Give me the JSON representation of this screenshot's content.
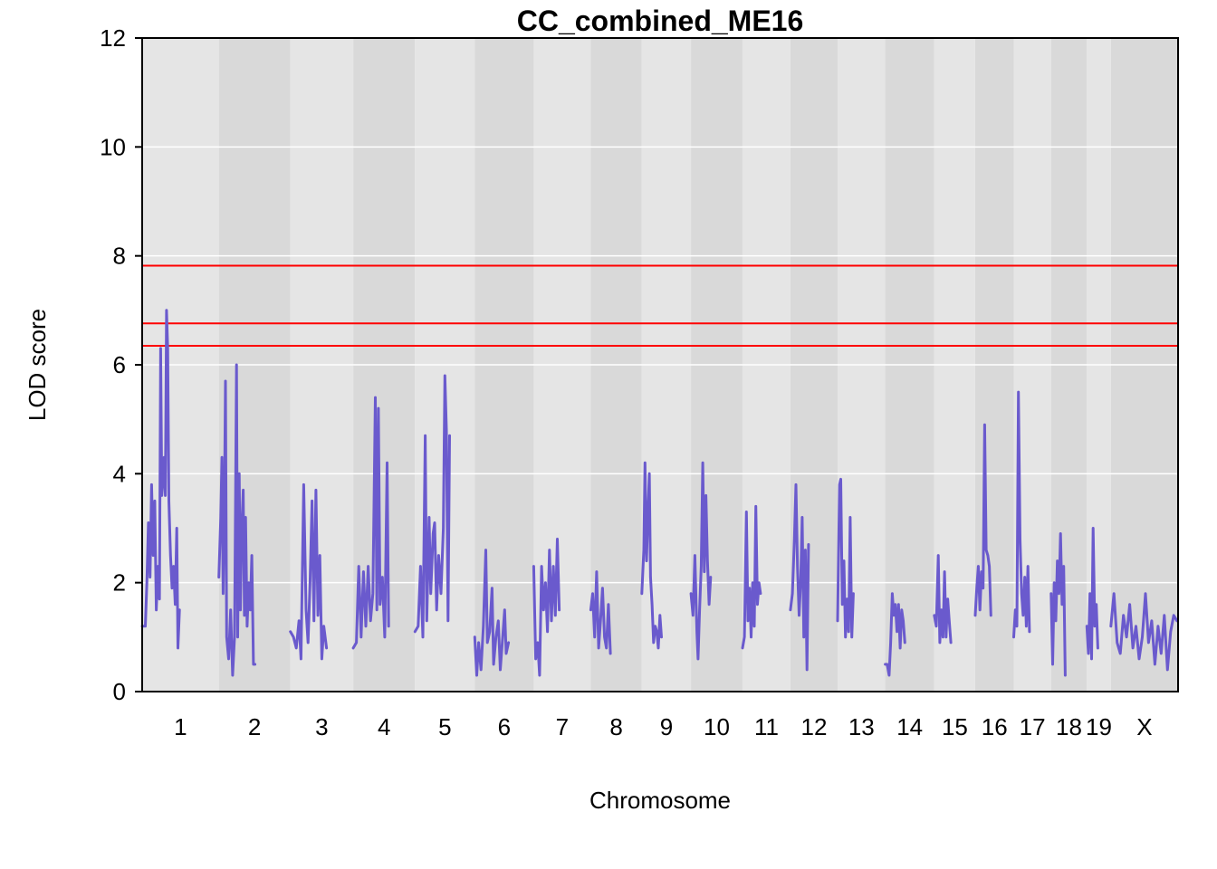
{
  "chart_data": {
    "type": "line",
    "title": "CC_combined_ME16",
    "xlabel": "Chromosome",
    "ylabel": "LOD score",
    "ylim": [
      0,
      12
    ],
    "yticks": [
      0,
      2,
      4,
      6,
      8,
      10,
      12
    ],
    "grid": true,
    "thresholds": [
      7.82,
      6.76,
      6.35
    ],
    "colors": {
      "line": "#6A5ACD",
      "threshold": "#FF0000",
      "band_light": "#E5E5E5",
      "band_dark": "#D9D9D9",
      "gridline": "#FFFFFF"
    },
    "chromosomes": [
      {
        "name": "1",
        "length": 195
      },
      {
        "name": "2",
        "length": 182
      },
      {
        "name": "3",
        "length": 160
      },
      {
        "name": "4",
        "length": 157
      },
      {
        "name": "5",
        "length": 152
      },
      {
        "name": "6",
        "length": 150
      },
      {
        "name": "7",
        "length": 145
      },
      {
        "name": "8",
        "length": 130
      },
      {
        "name": "9",
        "length": 125
      },
      {
        "name": "10",
        "length": 131
      },
      {
        "name": "11",
        "length": 122
      },
      {
        "name": "12",
        "length": 120
      },
      {
        "name": "13",
        "length": 121
      },
      {
        "name": "14",
        "length": 125
      },
      {
        "name": "15",
        "length": 104
      },
      {
        "name": "16",
        "length": 98
      },
      {
        "name": "17",
        "length": 95
      },
      {
        "name": "18",
        "length": 91
      },
      {
        "name": "19",
        "length": 61
      },
      {
        "name": "X",
        "length": 171
      }
    ],
    "series": [
      {
        "chr": "1",
        "points": [
          [
            0,
            1.2
          ],
          [
            8,
            1.2
          ],
          [
            12,
            2.0
          ],
          [
            16,
            3.1
          ],
          [
            20,
            2.1
          ],
          [
            24,
            3.8
          ],
          [
            28,
            2.5
          ],
          [
            32,
            3.5
          ],
          [
            36,
            1.5
          ],
          [
            40,
            2.3
          ],
          [
            44,
            1.7
          ],
          [
            47,
            6.3
          ],
          [
            50,
            3.6
          ],
          [
            53,
            3.9
          ],
          [
            56,
            4.3
          ],
          [
            59,
            3.6
          ],
          [
            62,
            7.0
          ],
          [
            65,
            6.3
          ],
          [
            68,
            3.5
          ],
          [
            72,
            2.5
          ],
          [
            76,
            1.9
          ],
          [
            80,
            2.3
          ],
          [
            84,
            1.6
          ],
          [
            88,
            3.0
          ],
          [
            91,
            0.8
          ],
          [
            95,
            1.5
          ]
        ]
      },
      {
        "chr": "2",
        "points": [
          [
            0,
            2.1
          ],
          [
            5,
            3.2
          ],
          [
            8,
            4.3
          ],
          [
            11,
            1.8
          ],
          [
            14,
            3.2
          ],
          [
            17,
            5.7
          ],
          [
            20,
            1.0
          ],
          [
            25,
            0.6
          ],
          [
            30,
            1.5
          ],
          [
            35,
            0.3
          ],
          [
            40,
            1.0
          ],
          [
            45,
            6.0
          ],
          [
            48,
            1.0
          ],
          [
            52,
            4.0
          ],
          [
            55,
            1.5
          ],
          [
            58,
            2.9
          ],
          [
            62,
            3.7
          ],
          [
            65,
            1.4
          ],
          [
            68,
            3.2
          ],
          [
            72,
            1.2
          ],
          [
            76,
            2.0
          ],
          [
            80,
            1.5
          ],
          [
            84,
            2.5
          ],
          [
            88,
            0.5
          ],
          [
            92,
            0.5
          ]
        ]
      },
      {
        "chr": "3",
        "points": [
          [
            0,
            1.1
          ],
          [
            8,
            1.0
          ],
          [
            15,
            0.8
          ],
          [
            22,
            1.3
          ],
          [
            27,
            0.6
          ],
          [
            34,
            3.8
          ],
          [
            40,
            1.5
          ],
          [
            45,
            0.9
          ],
          [
            50,
            2.0
          ],
          [
            55,
            3.5
          ],
          [
            60,
            1.3
          ],
          [
            65,
            3.7
          ],
          [
            70,
            1.4
          ],
          [
            75,
            2.5
          ],
          [
            80,
            0.6
          ],
          [
            85,
            1.2
          ],
          [
            92,
            0.8
          ]
        ]
      },
      {
        "chr": "4",
        "points": [
          [
            0,
            0.8
          ],
          [
            8,
            0.9
          ],
          [
            14,
            2.3
          ],
          [
            20,
            1.0
          ],
          [
            26,
            2.2
          ],
          [
            32,
            1.2
          ],
          [
            38,
            2.3
          ],
          [
            44,
            1.3
          ],
          [
            50,
            1.8
          ],
          [
            56,
            5.4
          ],
          [
            60,
            1.5
          ],
          [
            64,
            5.2
          ],
          [
            68,
            1.6
          ],
          [
            74,
            2.1
          ],
          [
            80,
            1.0
          ],
          [
            86,
            4.2
          ],
          [
            90,
            1.2
          ]
        ]
      },
      {
        "chr": "5",
        "points": [
          [
            0,
            1.1
          ],
          [
            8,
            1.2
          ],
          [
            14,
            2.3
          ],
          [
            20,
            1.0
          ],
          [
            26,
            4.7
          ],
          [
            30,
            1.3
          ],
          [
            36,
            3.2
          ],
          [
            40,
            1.8
          ],
          [
            46,
            2.9
          ],
          [
            50,
            3.1
          ],
          [
            55,
            1.5
          ],
          [
            60,
            2.5
          ],
          [
            66,
            1.8
          ],
          [
            72,
            3.0
          ],
          [
            76,
            5.8
          ],
          [
            80,
            4.8
          ],
          [
            84,
            1.3
          ],
          [
            88,
            4.7
          ]
        ]
      },
      {
        "chr": "6",
        "points": [
          [
            0,
            1.0
          ],
          [
            5,
            0.3
          ],
          [
            10,
            0.9
          ],
          [
            16,
            0.4
          ],
          [
            22,
            1.2
          ],
          [
            28,
            2.6
          ],
          [
            32,
            0.9
          ],
          [
            38,
            1.1
          ],
          [
            44,
            1.9
          ],
          [
            48,
            0.5
          ],
          [
            54,
            1.0
          ],
          [
            60,
            1.3
          ],
          [
            65,
            0.4
          ],
          [
            70,
            0.9
          ],
          [
            76,
            1.5
          ],
          [
            80,
            0.7
          ],
          [
            86,
            0.9
          ]
        ]
      },
      {
        "chr": "7",
        "points": [
          [
            0,
            2.3
          ],
          [
            5,
            0.6
          ],
          [
            10,
            0.9
          ],
          [
            15,
            0.3
          ],
          [
            20,
            2.3
          ],
          [
            25,
            1.5
          ],
          [
            30,
            2.0
          ],
          [
            35,
            1.1
          ],
          [
            40,
            2.6
          ],
          [
            45,
            1.3
          ],
          [
            50,
            2.3
          ],
          [
            55,
            1.4
          ],
          [
            60,
            2.8
          ],
          [
            65,
            1.5
          ]
        ]
      },
      {
        "chr": "8",
        "points": [
          [
            0,
            1.5
          ],
          [
            5,
            1.8
          ],
          [
            10,
            1.0
          ],
          [
            15,
            2.2
          ],
          [
            20,
            0.8
          ],
          [
            25,
            1.3
          ],
          [
            30,
            1.9
          ],
          [
            35,
            1.0
          ],
          [
            40,
            0.8
          ],
          [
            45,
            1.6
          ],
          [
            50,
            0.7
          ]
        ]
      },
      {
        "chr": "9",
        "points": [
          [
            0,
            1.8
          ],
          [
            5,
            2.6
          ],
          [
            8,
            4.2
          ],
          [
            12,
            2.4
          ],
          [
            16,
            3.4
          ],
          [
            19,
            4.0
          ],
          [
            22,
            2.1
          ],
          [
            26,
            1.6
          ],
          [
            30,
            0.9
          ],
          [
            34,
            1.2
          ],
          [
            38,
            1.1
          ],
          [
            42,
            0.8
          ],
          [
            46,
            1.4
          ],
          [
            50,
            1.0
          ]
        ]
      },
      {
        "chr": "10",
        "points": [
          [
            0,
            1.8
          ],
          [
            5,
            1.4
          ],
          [
            10,
            2.5
          ],
          [
            15,
            1.1
          ],
          [
            18,
            0.6
          ],
          [
            22,
            1.5
          ],
          [
            26,
            2.3
          ],
          [
            30,
            4.2
          ],
          [
            34,
            2.2
          ],
          [
            38,
            3.6
          ],
          [
            42,
            2.4
          ],
          [
            46,
            1.6
          ],
          [
            50,
            2.1
          ]
        ]
      },
      {
        "chr": "11",
        "points": [
          [
            0,
            0.8
          ],
          [
            5,
            1.0
          ],
          [
            10,
            3.3
          ],
          [
            14,
            1.3
          ],
          [
            18,
            1.9
          ],
          [
            22,
            1.0
          ],
          [
            26,
            2.0
          ],
          [
            30,
            1.2
          ],
          [
            34,
            3.4
          ],
          [
            38,
            1.6
          ],
          [
            42,
            2.0
          ],
          [
            46,
            1.8
          ]
        ]
      },
      {
        "chr": "12",
        "points": [
          [
            0,
            1.5
          ],
          [
            5,
            1.8
          ],
          [
            10,
            2.8
          ],
          [
            14,
            3.8
          ],
          [
            18,
            2.3
          ],
          [
            22,
            1.4
          ],
          [
            26,
            2.0
          ],
          [
            30,
            3.2
          ],
          [
            34,
            1.0
          ],
          [
            38,
            2.6
          ],
          [
            42,
            0.4
          ],
          [
            46,
            2.7
          ]
        ]
      },
      {
        "chr": "13",
        "points": [
          [
            0,
            1.3
          ],
          [
            5,
            3.8
          ],
          [
            8,
            3.9
          ],
          [
            12,
            1.6
          ],
          [
            16,
            2.4
          ],
          [
            20,
            1.0
          ],
          [
            24,
            1.7
          ],
          [
            28,
            1.1
          ],
          [
            32,
            3.2
          ],
          [
            36,
            1.0
          ],
          [
            40,
            1.8
          ]
        ]
      },
      {
        "chr": "14",
        "points": [
          [
            0,
            0.5
          ],
          [
            5,
            0.5
          ],
          [
            10,
            0.3
          ],
          [
            14,
            0.9
          ],
          [
            18,
            1.8
          ],
          [
            22,
            1.4
          ],
          [
            26,
            1.6
          ],
          [
            30,
            1.1
          ],
          [
            34,
            1.6
          ],
          [
            38,
            0.8
          ],
          [
            42,
            1.5
          ],
          [
            46,
            1.3
          ],
          [
            50,
            0.9
          ]
        ]
      },
      {
        "chr": "15",
        "points": [
          [
            0,
            1.4
          ],
          [
            5,
            1.2
          ],
          [
            10,
            2.5
          ],
          [
            14,
            0.9
          ],
          [
            18,
            1.5
          ],
          [
            22,
            1.0
          ],
          [
            26,
            2.2
          ],
          [
            30,
            1.0
          ],
          [
            34,
            1.7
          ],
          [
            38,
            1.3
          ],
          [
            42,
            0.9
          ]
        ]
      },
      {
        "chr": "16",
        "points": [
          [
            0,
            1.4
          ],
          [
            4,
            1.9
          ],
          [
            8,
            2.3
          ],
          [
            12,
            1.5
          ],
          [
            16,
            2.2
          ],
          [
            20,
            1.9
          ],
          [
            24,
            4.9
          ],
          [
            28,
            2.6
          ],
          [
            32,
            2.5
          ],
          [
            36,
            2.3
          ],
          [
            40,
            1.4
          ]
        ]
      },
      {
        "chr": "17",
        "points": [
          [
            0,
            1.0
          ],
          [
            4,
            1.5
          ],
          [
            8,
            1.2
          ],
          [
            12,
            5.5
          ],
          [
            16,
            2.8
          ],
          [
            20,
            1.8
          ],
          [
            24,
            1.4
          ],
          [
            28,
            2.1
          ],
          [
            32,
            1.2
          ],
          [
            36,
            2.3
          ],
          [
            40,
            1.1
          ]
        ]
      },
      {
        "chr": "18",
        "points": [
          [
            0,
            1.8
          ],
          [
            4,
            0.5
          ],
          [
            8,
            2.0
          ],
          [
            12,
            1.3
          ],
          [
            16,
            2.4
          ],
          [
            20,
            1.8
          ],
          [
            24,
            2.9
          ],
          [
            28,
            1.6
          ],
          [
            32,
            2.3
          ],
          [
            36,
            0.3
          ]
        ]
      },
      {
        "chr": "19",
        "points": [
          [
            0,
            1.2
          ],
          [
            4,
            0.7
          ],
          [
            8,
            1.8
          ],
          [
            12,
            0.6
          ],
          [
            16,
            3.0
          ],
          [
            20,
            1.2
          ],
          [
            24,
            1.6
          ],
          [
            28,
            0.8
          ]
        ]
      },
      {
        "chr": "X",
        "points": [
          [
            0,
            1.2
          ],
          [
            8,
            1.8
          ],
          [
            16,
            0.9
          ],
          [
            24,
            0.7
          ],
          [
            32,
            1.4
          ],
          [
            40,
            1.0
          ],
          [
            48,
            1.6
          ],
          [
            56,
            0.8
          ],
          [
            64,
            1.2
          ],
          [
            72,
            0.6
          ],
          [
            80,
            1.0
          ],
          [
            88,
            1.8
          ],
          [
            96,
            0.9
          ],
          [
            104,
            1.3
          ],
          [
            112,
            0.5
          ],
          [
            120,
            1.2
          ],
          [
            128,
            0.7
          ],
          [
            136,
            1.4
          ],
          [
            144,
            0.4
          ],
          [
            152,
            1.1
          ],
          [
            160,
            1.4
          ],
          [
            168,
            1.3
          ]
        ]
      }
    ]
  }
}
